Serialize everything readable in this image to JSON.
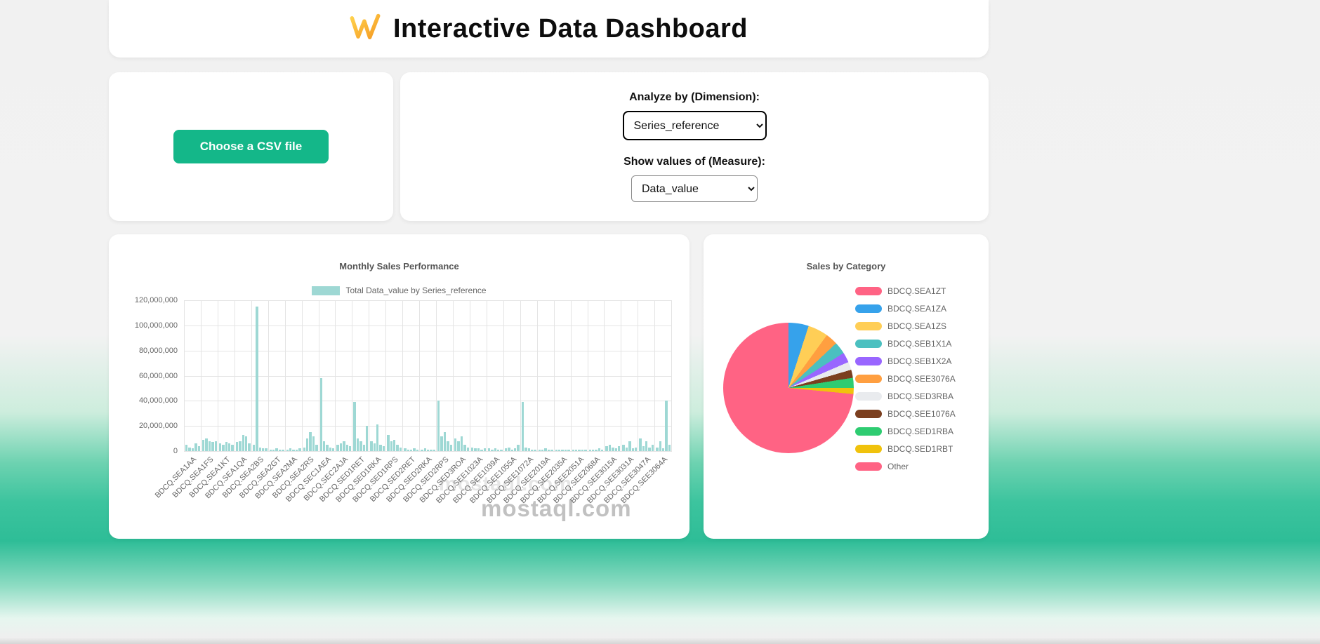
{
  "header": {
    "title": "Interactive Data Dashboard"
  },
  "upload": {
    "button_label": "Choose a CSV file"
  },
  "controls": {
    "dimension_label": "Analyze by (Dimension):",
    "dimension_value": "Series_reference",
    "measure_label": "Show values of (Measure):",
    "measure_value": "Data_value"
  },
  "watermark": {
    "text": "mostaql.com"
  },
  "colors": {
    "accent_button": "#14b789",
    "bar_fill": "#9ed8d4",
    "background_teal": "#2ebd97"
  },
  "chart_data": [
    {
      "type": "bar",
      "title": "Monthly Sales Performance",
      "legend_label": "Total Data_value by Series_reference",
      "bar_color": "#9ed8d4",
      "grid": true,
      "legend_position": "top",
      "ylim": [
        0,
        120000000
      ],
      "ytick_labels": [
        "120,000,000",
        "100,000,000",
        "80,000,000",
        "60,000,000",
        "40,000,000",
        "20,000,000",
        "0"
      ],
      "value_unit": 1000000,
      "bars_per_category": 5,
      "categories": [
        "BDCQ.SEA1AA",
        "BDCQ.SEA1FS",
        "BDCQ.SEA1KT",
        "BDCQ.SEA1QA",
        "BDCQ.SEA2BS",
        "BDCQ.SEA2GT",
        "BDCQ.SEA2MA",
        "BDCQ.SEA2RS",
        "BDCQ.SEC1AEA",
        "BDCQ.SEC2AJA",
        "BDCQ.SED1RET",
        "BDCQ.SED1RKA",
        "BDCQ.SED1RPS",
        "BDCQ.SED2RET",
        "BDCQ.SED2RKA",
        "BDCQ.SED2RPS",
        "BDCQ.SED3ROA",
        "BDCQ.SEE1023A",
        "BDCQ.SEE1039A",
        "BDCQ.SEE1055A",
        "BDCQ.SEE1072A",
        "BDCQ.SEE2019A",
        "BDCQ.SEE2035A",
        "BDCQ.SEE2051A",
        "BDCQ.SEE2068A",
        "BDCQ.SEE3015A",
        "BDCQ.SEE3031A",
        "BDCQ.SEE3047A",
        "BDCQ.SEE3064A"
      ],
      "values_millions": [
        5,
        3,
        2,
        6,
        4,
        9,
        10,
        8,
        7,
        8,
        6,
        5,
        7,
        6,
        5,
        7,
        8,
        13,
        12,
        6,
        5,
        115,
        3,
        2,
        2,
        1,
        1,
        2,
        1,
        1,
        1,
        2,
        1,
        1,
        2,
        3,
        10,
        15,
        12,
        5,
        58,
        8,
        5,
        3,
        2,
        5,
        6,
        8,
        5,
        4,
        39,
        10,
        8,
        5,
        20,
        8,
        6,
        21,
        5,
        4,
        13,
        8,
        9,
        5,
        3,
        2,
        1,
        1,
        2,
        1,
        1,
        2,
        1,
        1,
        1,
        40,
        12,
        15,
        8,
        5,
        10,
        8,
        12,
        5,
        3,
        3,
        2,
        2,
        1,
        2,
        2,
        1,
        2,
        1,
        1,
        2,
        3,
        1,
        2,
        5,
        39,
        3,
        2,
        1,
        1,
        1,
        1,
        2,
        1,
        1,
        1,
        1,
        1,
        1,
        1,
        1,
        1,
        1,
        1,
        1,
        1,
        1,
        1,
        2,
        1,
        4,
        5,
        3,
        2,
        4,
        5,
        3,
        8,
        2,
        3,
        10,
        4,
        8,
        3,
        5,
        3,
        8,
        2,
        40,
        5
      ]
    },
    {
      "type": "pie",
      "title": "Sales by Category",
      "legend_position": "right",
      "slices": [
        {
          "label": "BDCQ.SEA1ZT",
          "percent": 72,
          "color": "#FF6384"
        },
        {
          "label": "BDCQ.SEA1ZA",
          "percent": 5,
          "color": "#36A2EB"
        },
        {
          "label": "BDCQ.SEA1ZS",
          "percent": 5,
          "color": "#FFCE56"
        },
        {
          "label": "BDCQ.SEB1X1A",
          "percent": 3,
          "color": "#4BC0C0"
        },
        {
          "label": "BDCQ.SEB1X2A",
          "percent": 2.5,
          "color": "#9966FF"
        },
        {
          "label": "BDCQ.SEE3076A",
          "percent": 3,
          "color": "#FF9F40"
        },
        {
          "label": "BDCQ.SED3RBA",
          "percent": 2,
          "color": "#E9EBEE"
        },
        {
          "label": "BDCQ.SEE1076A",
          "percent": 2,
          "color": "#7B3F1F"
        },
        {
          "label": "BDCQ.SED1RBA",
          "percent": 2.5,
          "color": "#2ECC71"
        },
        {
          "label": "BDCQ.SED1RBT",
          "percent": 1.5,
          "color": "#F0C20C"
        },
        {
          "label": "Other",
          "percent": 1.5,
          "color": "#FF6384"
        }
      ],
      "render_order": [
        1,
        2,
        5,
        3,
        4,
        6,
        7,
        8,
        9,
        10,
        0
      ]
    }
  ]
}
